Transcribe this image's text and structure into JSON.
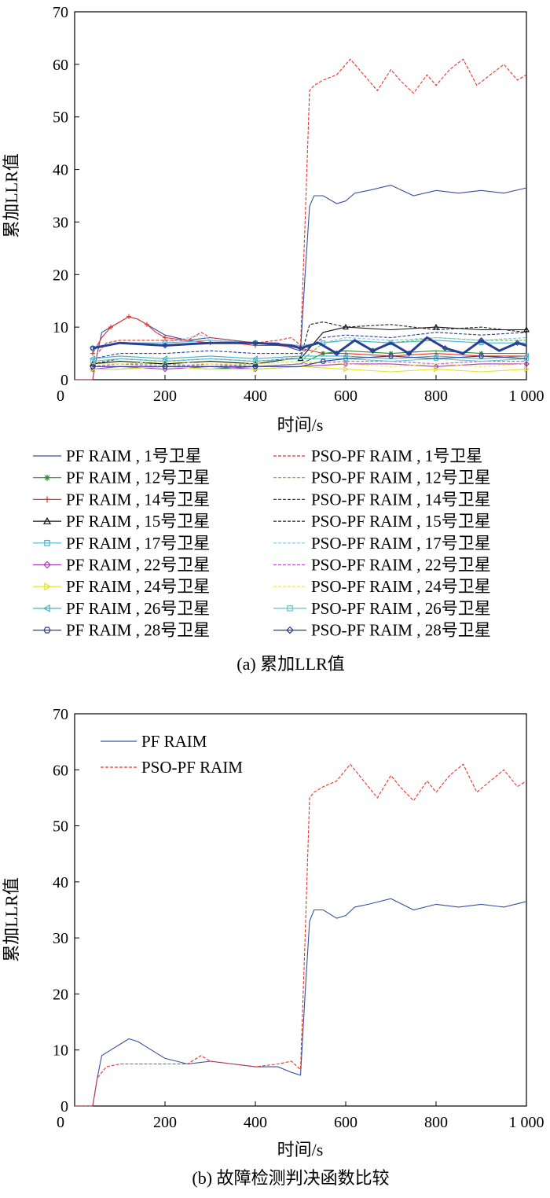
{
  "chart_data": [
    {
      "type": "line",
      "caption": "(a) 累加LLR值",
      "xlabel": "时间/s",
      "ylabel": "累加LLR值",
      "xlim": [
        0,
        1000
      ],
      "ylim": [
        0,
        70
      ],
      "xticks": [
        "0",
        "200",
        "400",
        "600",
        "800",
        "1 000"
      ],
      "yticks": [
        "0",
        "10",
        "20",
        "30",
        "40",
        "50",
        "60",
        "70"
      ],
      "grid": false,
      "legend_position": "below-plot",
      "series": [
        {
          "name": "PF RAIM , 1号卫星",
          "color": "#3a4fa0",
          "dash": "solid",
          "marker": "none",
          "x": [
            0,
            40,
            50,
            60,
            80,
            100,
            120,
            140,
            160,
            180,
            200,
            250,
            300,
            350,
            400,
            450,
            480,
            500,
            510,
            520,
            530,
            550,
            580,
            600,
            620,
            650,
            700,
            750,
            800,
            850,
            900,
            950,
            1000
          ],
          "y": [
            0,
            0,
            5,
            9,
            10,
            11,
            12,
            11.5,
            10.5,
            9.5,
            8.5,
            7.5,
            8,
            7.5,
            7,
            7,
            6,
            5.5,
            20,
            33,
            35,
            35,
            33.5,
            34,
            35.5,
            36,
            37,
            35,
            36,
            35.5,
            36,
            35.5,
            36.5
          ]
        },
        {
          "name": "PSO-PF RAIM , 1号卫星",
          "color": "#e8322d",
          "dash": "dashed",
          "marker": "none",
          "x": [
            0,
            40,
            50,
            70,
            100,
            150,
            200,
            250,
            280,
            300,
            350,
            400,
            450,
            480,
            500,
            510,
            520,
            530,
            550,
            580,
            600,
            610,
            640,
            670,
            700,
            720,
            750,
            780,
            800,
            830,
            860,
            890,
            920,
            950,
            980,
            1000
          ],
          "y": [
            0,
            0,
            5,
            7,
            7.5,
            7.5,
            7.5,
            7.5,
            9,
            8,
            7.5,
            7,
            7.5,
            8,
            6.5,
            30,
            55,
            56,
            57,
            58,
            60,
            61,
            58,
            55,
            59,
            57,
            54.5,
            58,
            56,
            59,
            61,
            56,
            58,
            60,
            57,
            58
          ]
        },
        {
          "name": "PF RAIM , 12号卫星",
          "color": "#2e8b2e",
          "dash": "solid",
          "marker": "asterisk",
          "x": [
            40,
            100,
            200,
            300,
            400,
            500,
            550,
            600,
            700,
            800,
            900,
            1000
          ],
          "y": [
            2,
            2,
            2.5,
            2,
            2.5,
            3,
            5,
            5.5,
            5,
            5.5,
            5,
            5
          ]
        },
        {
          "name": "PSO-PF RAIM , 12号卫星",
          "color": "#5dbb33",
          "dash": "dashed",
          "marker": "none",
          "x": [
            40,
            100,
            200,
            300,
            400,
            500,
            550,
            600,
            700,
            800,
            900,
            1000
          ],
          "y": [
            2.5,
            3,
            3,
            2.5,
            3,
            3.5,
            7,
            7.5,
            7,
            8,
            7.5,
            7.5
          ]
        },
        {
          "name": "PF RAIM , 14号卫星",
          "color": "#e8322d",
          "dash": "solid",
          "marker": "plus",
          "x": [
            40,
            60,
            80,
            100,
            120,
            140,
            160,
            180,
            200,
            250,
            300,
            350,
            400,
            450,
            500,
            550,
            600,
            700,
            800,
            900,
            1000
          ],
          "y": [
            5,
            8,
            10,
            11,
            12,
            11.5,
            10.5,
            9,
            8,
            7.5,
            7,
            7,
            6.5,
            6.5,
            6,
            5,
            5,
            4.5,
            5,
            4.5,
            4.5
          ]
        },
        {
          "name": "PSO-PF RAIM , 14号卫星",
          "color": "#2a3f96",
          "dash": "dashed",
          "marker": "none",
          "x": [
            40,
            100,
            200,
            300,
            400,
            500,
            550,
            600,
            700,
            800,
            900,
            1000
          ],
          "y": [
            4,
            5,
            5,
            5.5,
            5,
            5,
            8,
            8.5,
            8,
            9,
            8.5,
            9
          ]
        },
        {
          "name": "PF RAIM , 15号卫星",
          "color": "#111111",
          "dash": "solid",
          "marker": "triangle",
          "x": [
            40,
            100,
            200,
            300,
            400,
            480,
            500,
            550,
            600,
            700,
            800,
            900,
            1000
          ],
          "y": [
            3,
            3.5,
            3,
            3.5,
            3,
            4,
            4,
            9,
            10,
            9.5,
            10,
            9.5,
            9.5
          ]
        },
        {
          "name": "PSO-PF RAIM , 15号卫星",
          "color": "#222222",
          "dash": "dashed",
          "marker": "none",
          "x": [
            40,
            100,
            200,
            300,
            400,
            480,
            500,
            520,
            550,
            600,
            700,
            800,
            900,
            1000
          ],
          "y": [
            3,
            4,
            3.5,
            4,
            3.5,
            4,
            4,
            10.5,
            11,
            10,
            10.5,
            9.5,
            10,
            9
          ]
        },
        {
          "name": "PF RAIM , 17号卫星",
          "color": "#3fb6d6",
          "dash": "solid",
          "marker": "square",
          "x": [
            40,
            100,
            200,
            300,
            400,
            500,
            550,
            600,
            700,
            800,
            900,
            1000
          ],
          "y": [
            6,
            7,
            7,
            7.5,
            7,
            6.5,
            7,
            7.5,
            7,
            7.5,
            7,
            7
          ]
        },
        {
          "name": "PSO-PF RAIM , 17号卫星",
          "color": "#7fc7e8",
          "dash": "dashed",
          "marker": "none",
          "x": [
            40,
            100,
            200,
            280,
            300,
            400,
            500,
            550,
            600,
            700,
            800,
            900,
            1000
          ],
          "y": [
            6,
            7,
            7,
            8.5,
            7.5,
            7,
            6.5,
            7,
            8,
            7.5,
            8,
            7.5,
            8
          ]
        },
        {
          "name": "PF RAIM , 22号卫星",
          "color": "#a43fb0",
          "dash": "solid",
          "marker": "diamond",
          "x": [
            40,
            100,
            200,
            300,
            400,
            500,
            600,
            700,
            800,
            900,
            1000
          ],
          "y": [
            2,
            2.5,
            2,
            2.5,
            2,
            2.5,
            3,
            3,
            2.5,
            3,
            3
          ]
        },
        {
          "name": "PSO-PF RAIM , 22号卫星",
          "color": "#c45bd0",
          "dash": "dashed",
          "marker": "none",
          "x": [
            40,
            100,
            200,
            300,
            400,
            500,
            600,
            700,
            800,
            900,
            1000
          ],
          "y": [
            2.5,
            3,
            2.5,
            3,
            2.5,
            3,
            3.5,
            3.5,
            3,
            3.5,
            3.5
          ]
        },
        {
          "name": "PF RAIM , 24号卫星",
          "color": "#e6e02a",
          "dash": "solid",
          "marker": "triangle-right",
          "x": [
            40,
            100,
            200,
            300,
            400,
            500,
            600,
            700,
            800,
            900,
            1000
          ],
          "y": [
            2,
            2,
            2.5,
            2,
            2,
            2.5,
            2,
            1.5,
            2,
            1.5,
            2
          ]
        },
        {
          "name": "PSO-PF RAIM , 24号卫星",
          "color": "#efe94a",
          "dash": "dashed",
          "marker": "none",
          "x": [
            40,
            100,
            200,
            300,
            400,
            500,
            600,
            700,
            800,
            900,
            1000
          ],
          "y": [
            3,
            3,
            3.5,
            3,
            3,
            3.5,
            3,
            2.5,
            3,
            2.5,
            3
          ]
        },
        {
          "name": "PF RAIM , 26号卫星",
          "color": "#40b2c8",
          "dash": "solid",
          "marker": "triangle-left",
          "x": [
            40,
            100,
            200,
            300,
            400,
            500,
            600,
            700,
            800,
            900,
            1000
          ],
          "y": [
            4,
            4.5,
            4,
            4.5,
            4,
            4.5,
            4.5,
            4,
            4.5,
            4,
            4.5
          ]
        },
        {
          "name": "PSO-PF RAIM , 26号卫星",
          "color": "#5cc4cc",
          "dash": "solid",
          "marker": "square",
          "x": [
            40,
            100,
            200,
            300,
            400,
            500,
            600,
            700,
            800,
            900,
            1000
          ],
          "y": [
            3.5,
            4,
            3.5,
            4,
            3.5,
            4,
            4,
            3.5,
            4,
            3.5,
            4
          ]
        },
        {
          "name": "PF RAIM , 28号卫星",
          "color": "#2a3f96",
          "dash": "solid",
          "marker": "hexagon",
          "x": [
            40,
            100,
            200,
            300,
            400,
            500,
            550,
            600,
            700,
            800,
            900,
            1000
          ],
          "y": [
            2.5,
            2.5,
            2.5,
            2.5,
            2.5,
            2.5,
            3.5,
            4,
            4.5,
            4,
            4.5,
            4
          ]
        },
        {
          "name": "PSO-PF RAIM , 28号卫星",
          "color": "#2a3f96",
          "dash": "solid",
          "marker": "diamond",
          "x": [
            40,
            100,
            200,
            300,
            400,
            480,
            500,
            540,
            580,
            620,
            660,
            700,
            740,
            780,
            820,
            860,
            900,
            940,
            980,
            1000
          ],
          "y": [
            6,
            7,
            6.5,
            7,
            7,
            6.5,
            6,
            7,
            5,
            7.5,
            5.5,
            7,
            5,
            8,
            6,
            5,
            7.5,
            5.5,
            7,
            6.5
          ]
        }
      ]
    },
    {
      "type": "line",
      "caption": "(b) 故障检测判决函数比较",
      "xlabel": "时间/s",
      "ylabel": "累加LLR值",
      "xlim": [
        0,
        1000
      ],
      "ylim": [
        0,
        70
      ],
      "xticks": [
        "0",
        "200",
        "400",
        "600",
        "800",
        "1 000"
      ],
      "yticks": [
        "0",
        "10",
        "20",
        "30",
        "40",
        "50",
        "60",
        "70"
      ],
      "grid": false,
      "legend_position": "top-left",
      "series": [
        {
          "name": "PF RAIM",
          "color": "#3a4fa0",
          "dash": "solid",
          "x": [
            0,
            40,
            50,
            60,
            80,
            100,
            120,
            140,
            160,
            180,
            200,
            250,
            300,
            350,
            400,
            450,
            480,
            500,
            510,
            520,
            530,
            550,
            580,
            600,
            620,
            650,
            700,
            750,
            800,
            850,
            900,
            950,
            1000
          ],
          "y": [
            0,
            0,
            5,
            9,
            10,
            11,
            12,
            11.5,
            10.5,
            9.5,
            8.5,
            7.5,
            8,
            7.5,
            7,
            7,
            6,
            5.5,
            20,
            33,
            35,
            35,
            33.5,
            34,
            35.5,
            36,
            37,
            35,
            36,
            35.5,
            36,
            35.5,
            36.5
          ]
        },
        {
          "name": "PSO-PF RAIM",
          "color": "#e8322d",
          "dash": "dashed",
          "x": [
            0,
            40,
            50,
            70,
            100,
            150,
            200,
            250,
            280,
            300,
            350,
            400,
            450,
            480,
            500,
            510,
            520,
            530,
            550,
            580,
            600,
            610,
            640,
            670,
            700,
            720,
            750,
            780,
            800,
            830,
            860,
            890,
            920,
            950,
            980,
            1000
          ],
          "y": [
            0,
            0,
            5,
            7,
            7.5,
            7.5,
            7.5,
            7.5,
            9,
            8,
            7.5,
            7,
            7.5,
            8,
            6.5,
            30,
            55,
            56,
            57,
            58,
            60,
            61,
            58,
            55,
            59,
            57,
            54.5,
            58,
            56,
            59,
            61,
            56,
            58,
            60,
            57,
            58
          ]
        }
      ]
    }
  ]
}
